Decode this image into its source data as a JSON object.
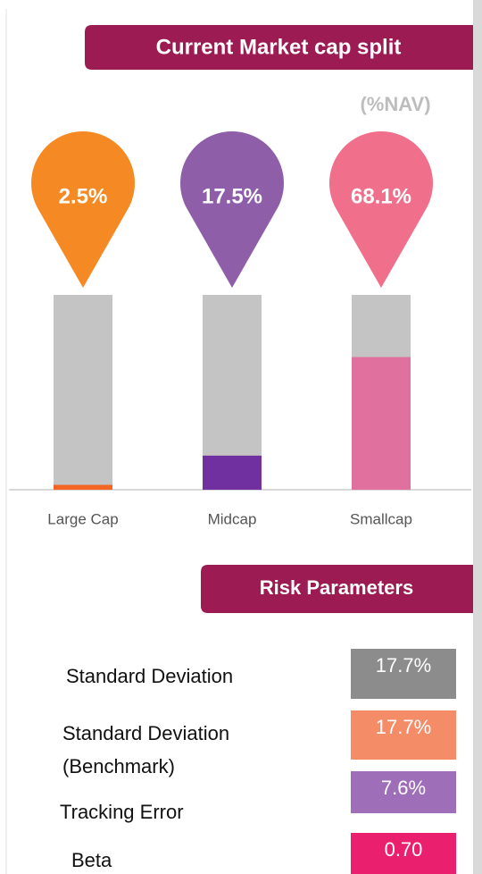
{
  "chart_data": {
    "type": "bar",
    "title": "Current Market cap split",
    "subtitle": "(%NAV)",
    "categories": [
      "Large Cap",
      "Midcap",
      "Smallcap"
    ],
    "values": [
      2.5,
      17.5,
      68.1
    ],
    "value_labels": [
      "2.5%",
      "17.5%",
      "68.1%"
    ],
    "ylim": [
      0,
      100
    ],
    "colors": [
      "#f26522",
      "#7030a0",
      "#e0709e"
    ],
    "pin_colors": [
      "#f58a25",
      "#8e5fa8",
      "#f06f8a"
    ]
  },
  "risk_parameters": {
    "title": "Risk Parameters",
    "rows": [
      {
        "label": "Standard Deviation",
        "value": "17.7%",
        "color": "#8c8c8c"
      },
      {
        "label": "Standard Deviation (Benchmark)",
        "value": "17.7%",
        "color": "#f48c68"
      },
      {
        "label": "Tracking Error",
        "value": "7.6%",
        "color": "#9e6fb8"
      },
      {
        "label": "Beta",
        "value": "0.70",
        "color": "#ea1f6e"
      }
    ]
  }
}
